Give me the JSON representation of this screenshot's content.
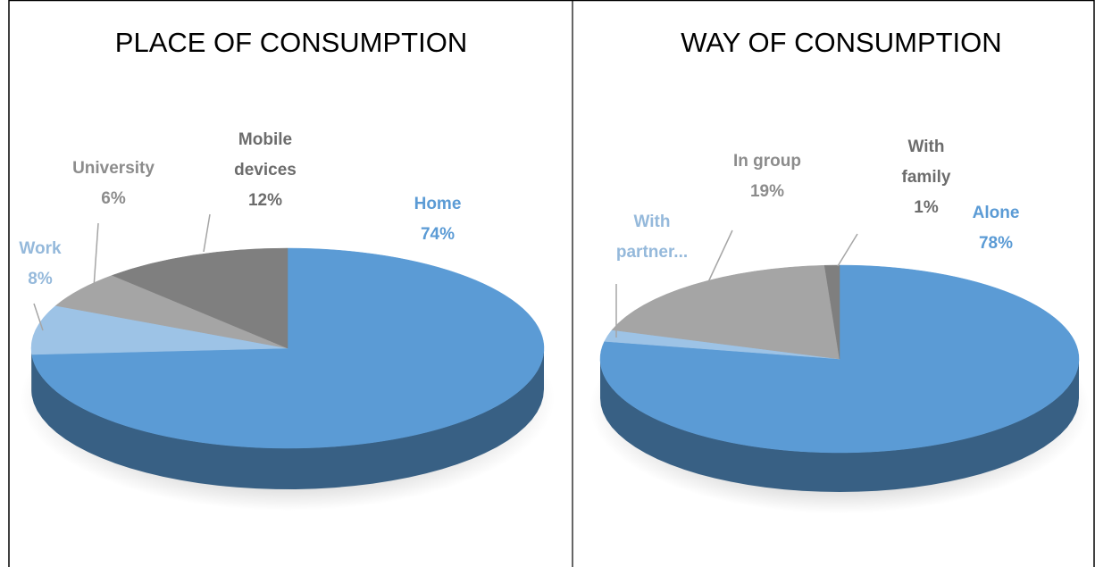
{
  "chart_data": [
    {
      "type": "pie",
      "title": "PLACE OF CONSUMPTION",
      "categories": [
        "Home",
        "Work",
        "University",
        "Mobile devices"
      ],
      "values": [
        74,
        8,
        6,
        12
      ],
      "value_labels": [
        "74%",
        "8%",
        "6%",
        "12%"
      ],
      "colors": [
        "#5b9bd5",
        "#9dc3e6",
        "#a5a5a5",
        "#7f7f7f"
      ]
    },
    {
      "type": "pie",
      "title": "WAY OF CONSUMPTION",
      "categories": [
        "Alone",
        "With partner...",
        "In group",
        "With family"
      ],
      "values": [
        78,
        2,
        19,
        1
      ],
      "value_labels": [
        "78%",
        null,
        "19%",
        "1%"
      ],
      "colors": [
        "#5b9bd5",
        "#9dc3e6",
        "#a5a5a5",
        "#7f7f7f"
      ]
    }
  ]
}
